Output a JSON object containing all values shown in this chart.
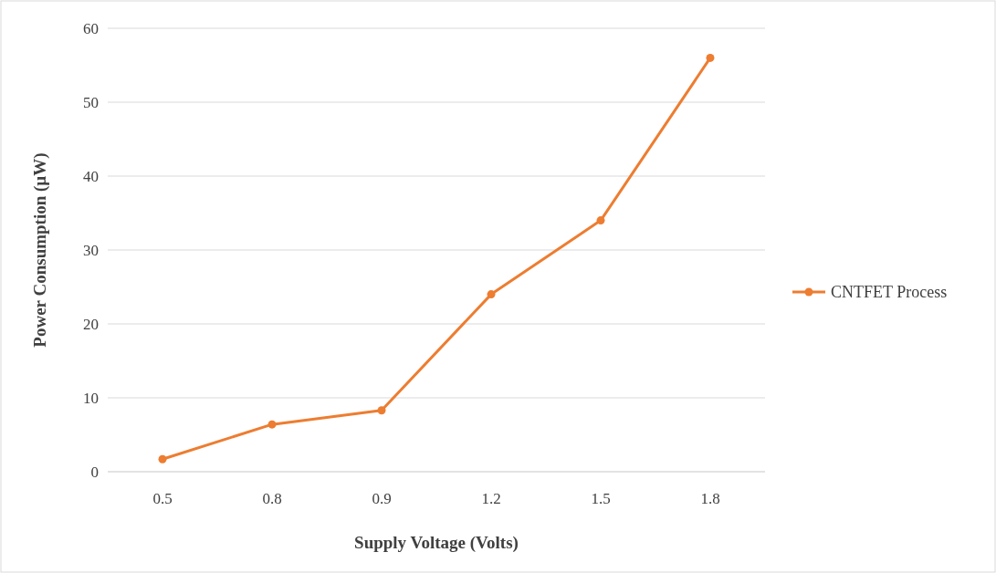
{
  "chart_data": {
    "type": "line",
    "xlabel": "Supply Voltage (Volts)",
    "ylabel": "Power Consumption (µW)",
    "categories": [
      "0.5",
      "0.8",
      "0.9",
      "1.2",
      "1.5",
      "1.8"
    ],
    "series": [
      {
        "name": "CNTFET Process",
        "color": "#ed7d31",
        "values": [
          1.7,
          6.4,
          8.3,
          24,
          34,
          56
        ]
      }
    ],
    "ylim": [
      0,
      60
    ],
    "yticks": [
      0,
      10,
      20,
      30,
      40,
      50,
      60
    ],
    "grid": "y",
    "legend": "right",
    "marker": "circle",
    "line_style": "solid"
  }
}
